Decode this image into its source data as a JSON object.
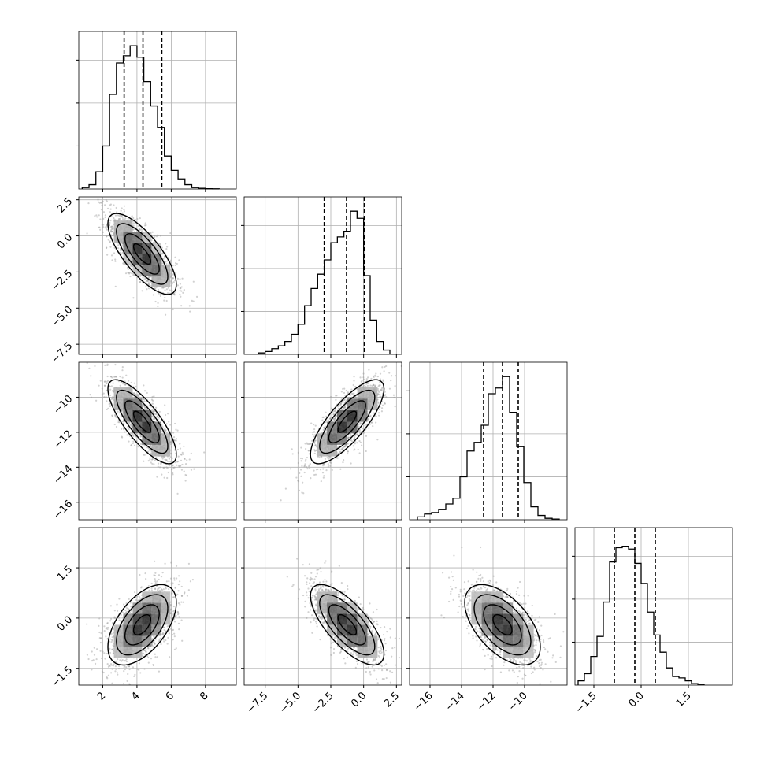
{
  "colors": {
    "line": "#000000",
    "grid": "#b0b0b0",
    "scatter": "#9a9a9a",
    "density": "#000000"
  },
  "chart_data": [
    {
      "type": "histogram",
      "variable": 0,
      "xlim": [
        0.6,
        9.8
      ],
      "bins": [
        0.8,
        1.2,
        1.6,
        2.0,
        2.4,
        2.8,
        3.2,
        3.6,
        4.0,
        4.4,
        4.8,
        5.2,
        5.6,
        6.0,
        6.4,
        6.8,
        7.2,
        7.6,
        8.0,
        8.4,
        8.8
      ],
      "counts": [
        0.01,
        0.03,
        0.12,
        0.3,
        0.66,
        0.88,
        0.93,
        1.0,
        0.92,
        0.75,
        0.58,
        0.43,
        0.23,
        0.13,
        0.07,
        0.03,
        0.01,
        0.005,
        0.002,
        0.001
      ],
      "quantiles": [
        3.25,
        4.35,
        5.45
      ],
      "xticks": [
        2,
        4,
        6,
        8
      ]
    },
    {
      "type": "histogram",
      "variable": 1,
      "xlim": [
        -9.1,
        2.9
      ],
      "bins": [
        -8.0,
        -7.5,
        -7.0,
        -6.5,
        -6.0,
        -5.5,
        -5.0,
        -4.5,
        -4.0,
        -3.5,
        -3.0,
        -2.5,
        -2.0,
        -1.5,
        -1.0,
        -0.5,
        0.0,
        0.5,
        1.0,
        1.5,
        2.0
      ],
      "counts": [
        0.01,
        0.02,
        0.04,
        0.06,
        0.09,
        0.14,
        0.21,
        0.34,
        0.46,
        0.56,
        0.66,
        0.78,
        0.82,
        0.86,
        1.0,
        0.95,
        0.55,
        0.24,
        0.09,
        0.03
      ],
      "quantiles": [
        -3.0,
        -1.3,
        0.05
      ],
      "xticks": [
        -7.5,
        -5.0,
        -2.5,
        0.0,
        2.5
      ]
    },
    {
      "type": "histogram",
      "variable": 2,
      "xlim": [
        -17.3,
        -7.3
      ],
      "bins": [
        -16.8,
        -16.35,
        -15.9,
        -15.45,
        -15.0,
        -14.55,
        -14.1,
        -13.65,
        -13.2,
        -12.75,
        -12.3,
        -11.85,
        -11.4,
        -10.95,
        -10.5,
        -10.05,
        -9.6,
        -9.15,
        -8.7,
        -8.25,
        -7.8
      ],
      "counts": [
        0.02,
        0.04,
        0.05,
        0.07,
        0.11,
        0.15,
        0.3,
        0.48,
        0.54,
        0.66,
        0.88,
        0.92,
        1.0,
        0.75,
        0.51,
        0.26,
        0.09,
        0.03,
        0.01,
        0.005
      ],
      "quantiles": [
        -12.6,
        -11.4,
        -10.4
      ],
      "xticks": [
        -16,
        -14,
        -12,
        -10
      ]
    },
    {
      "type": "histogram",
      "variable": 3,
      "xlim": [
        -2.1,
        2.9
      ],
      "bins": [
        -2.0,
        -1.8,
        -1.6,
        -1.4,
        -1.2,
        -1.0,
        -0.8,
        -0.6,
        -0.4,
        -0.2,
        0.0,
        0.2,
        0.4,
        0.6,
        0.8,
        1.0,
        1.2,
        1.4,
        1.6,
        1.8,
        2.0
      ],
      "counts": [
        0.03,
        0.08,
        0.2,
        0.34,
        0.58,
        0.86,
        0.96,
        0.97,
        0.95,
        0.85,
        0.71,
        0.51,
        0.35,
        0.23,
        0.12,
        0.06,
        0.05,
        0.03,
        0.01,
        0.005
      ],
      "quantiles": [
        -0.85,
        -0.2,
        0.45
      ],
      "xticks": [
        -1.5,
        0.0,
        1.5
      ]
    },
    {
      "type": "scatter-density",
      "x_var": 0,
      "y_var": 1,
      "mean": [
        4.3,
        -1.25
      ],
      "sd": [
        1.0,
        1.4
      ],
      "corr": -0.75,
      "yticks": [
        2.5,
        0.0,
        -2.5,
        -5.0,
        -7.5
      ],
      "ylim": [
        -8.2,
        2.7
      ]
    },
    {
      "type": "scatter-density",
      "x_var": 0,
      "y_var": 2,
      "mean": [
        4.3,
        -11.4
      ],
      "sd": [
        1.0,
        1.2
      ],
      "corr": -0.78,
      "yticks": [
        -10,
        -12,
        -14,
        -16
      ],
      "ylim": [
        -17.0,
        -8.0
      ]
    },
    {
      "type": "scatter-density",
      "x_var": 1,
      "y_var": 2,
      "mean": [
        -1.25,
        -11.4
      ],
      "sd": [
        1.4,
        1.2
      ],
      "corr": 0.78,
      "yticks": [],
      "ylim": [
        -17.0,
        -8.0
      ]
    },
    {
      "type": "scatter-density",
      "x_var": 0,
      "y_var": 3,
      "mean": [
        4.3,
        -0.2
      ],
      "sd": [
        1.0,
        0.6
      ],
      "corr": 0.55,
      "yticks": [
        1.5,
        0.0,
        -1.5
      ],
      "ylim": [
        -2.0,
        2.7
      ]
    },
    {
      "type": "scatter-density",
      "x_var": 1,
      "y_var": 3,
      "mean": [
        -1.25,
        -0.2
      ],
      "sd": [
        1.4,
        0.6
      ],
      "corr": -0.72,
      "yticks": [],
      "ylim": [
        -2.0,
        2.7
      ]
    },
    {
      "type": "scatter-density",
      "x_var": 2,
      "y_var": 3,
      "mean": [
        -11.4,
        -0.2
      ],
      "sd": [
        1.2,
        0.6
      ],
      "corr": -0.55,
      "yticks": [],
      "ylim": [
        -2.0,
        2.7
      ]
    }
  ]
}
